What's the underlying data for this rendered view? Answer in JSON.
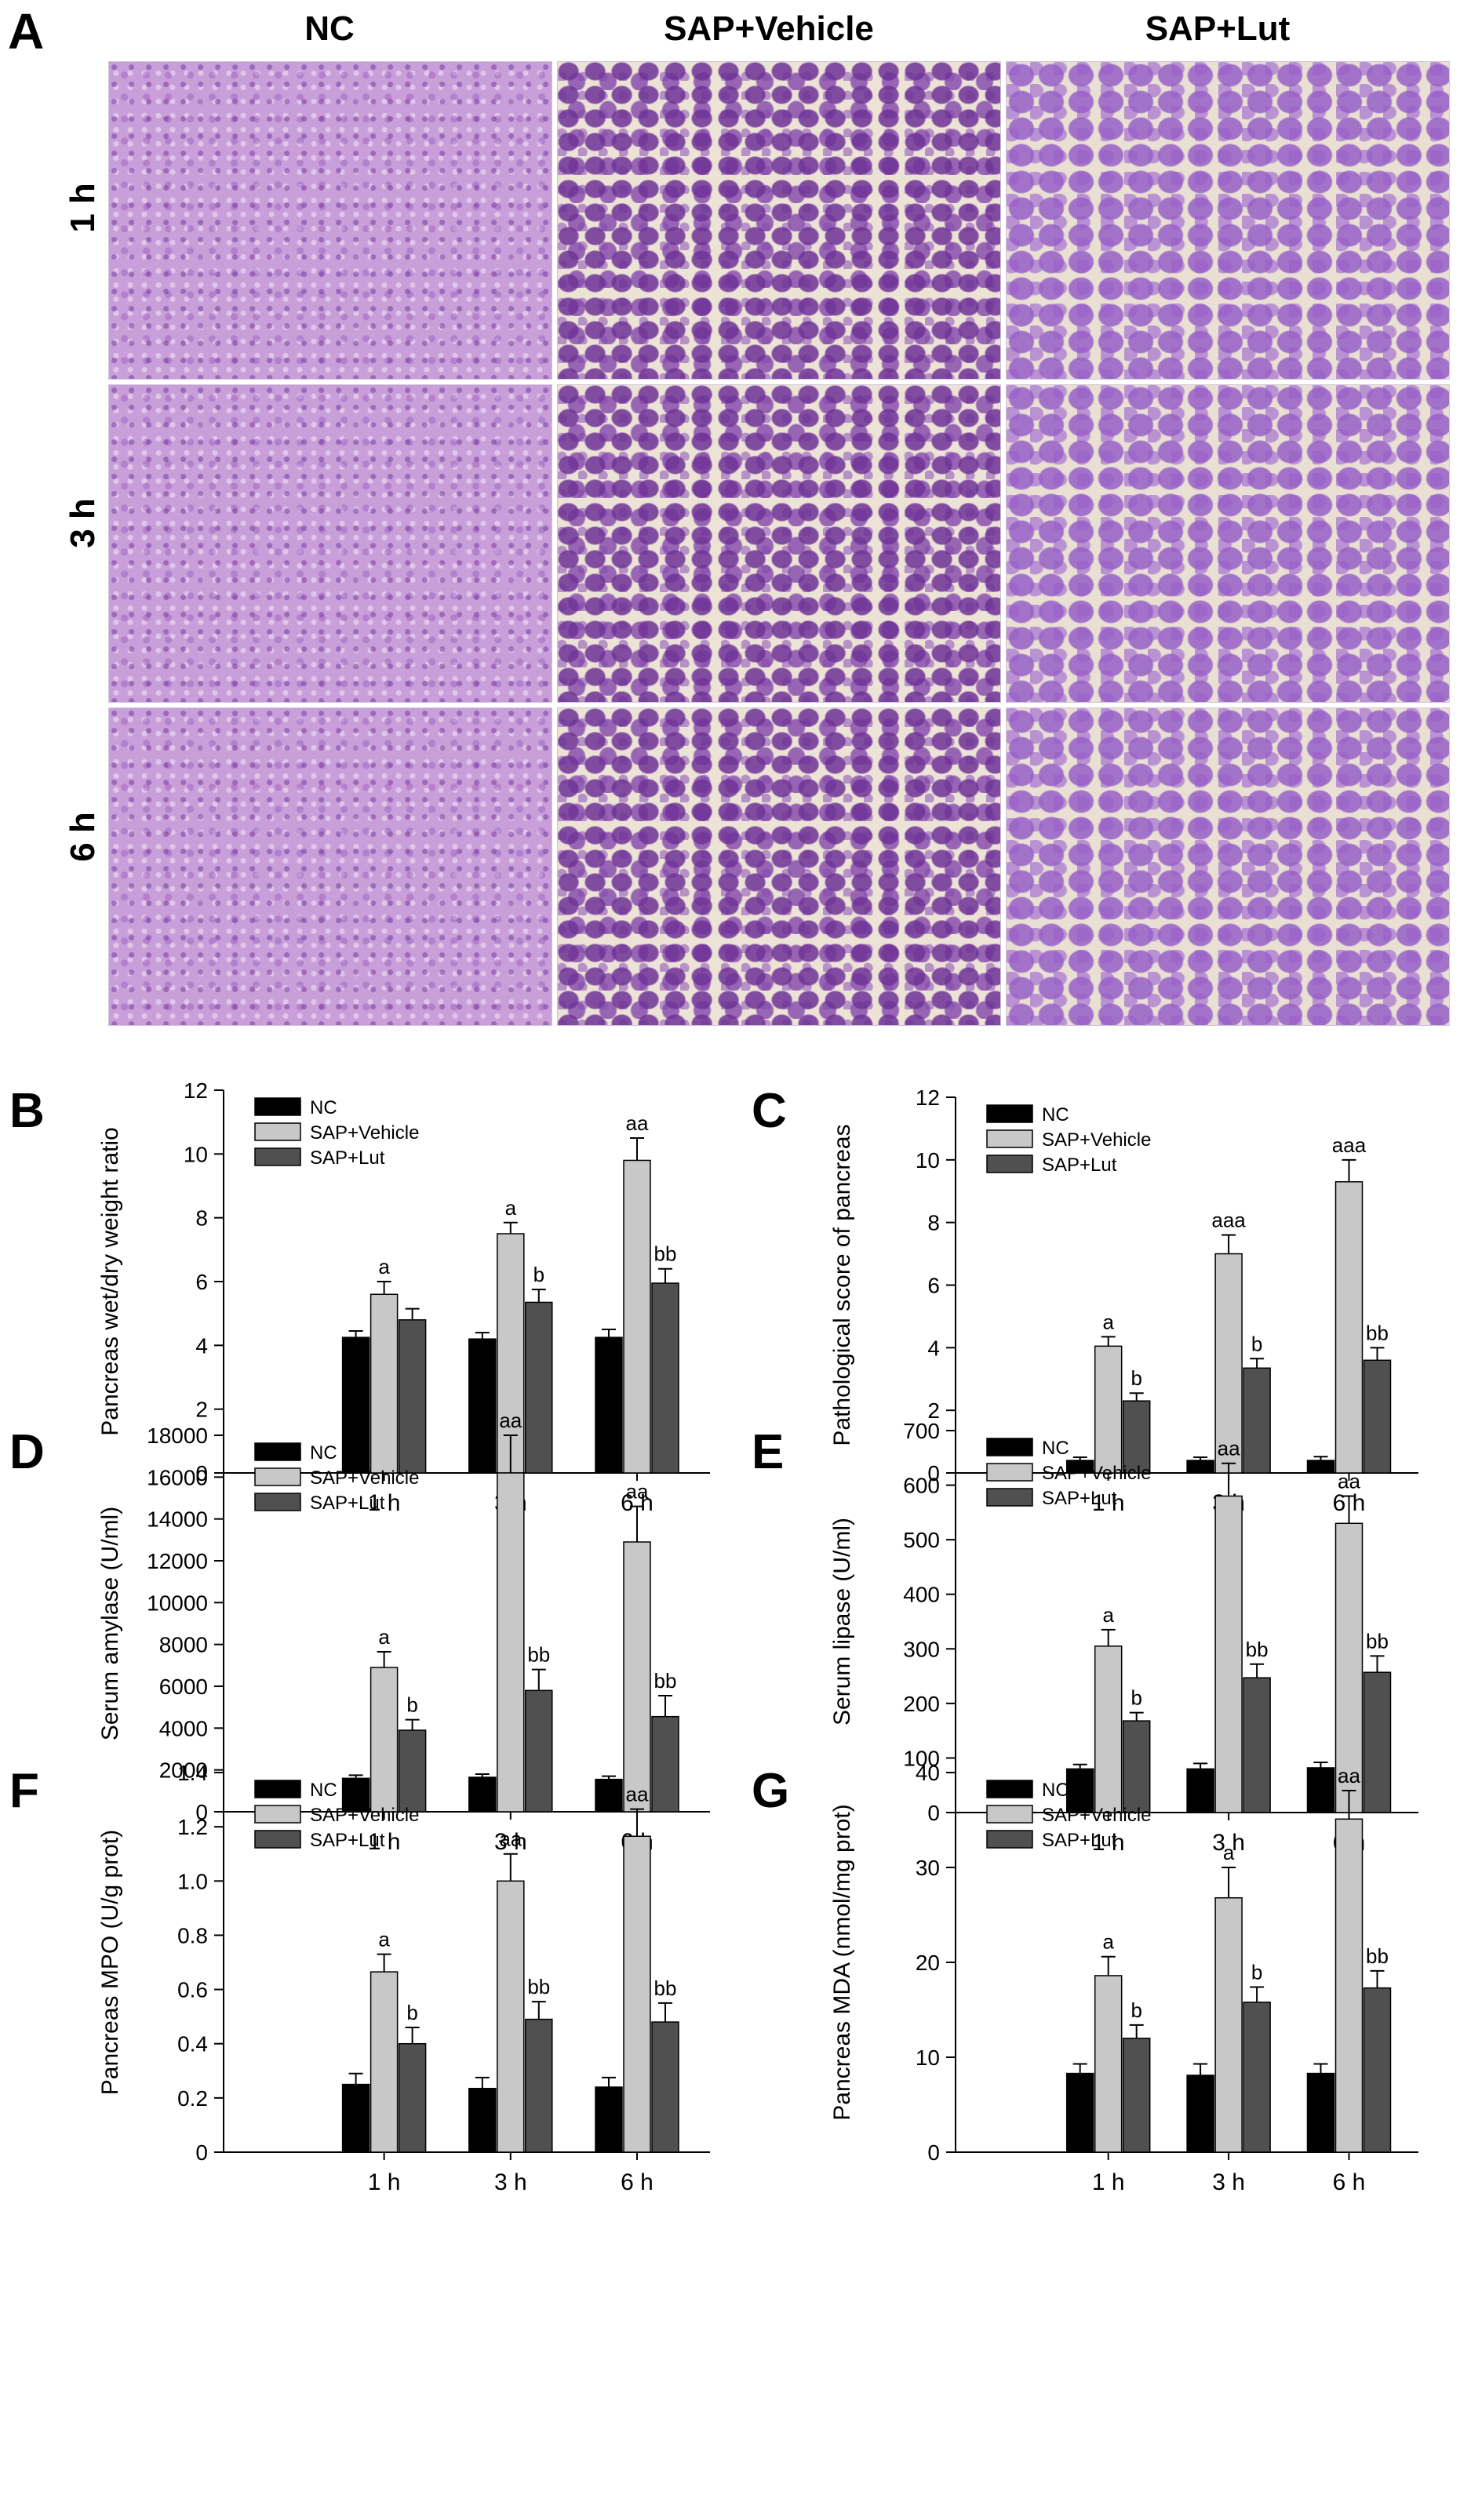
{
  "panel_a": {
    "letter": "A",
    "columns": [
      "NC",
      "SAP+Vehicle",
      "SAP+Lut"
    ],
    "rows": [
      "1 h",
      "3 h",
      "6 h"
    ]
  },
  "legend_labels": [
    "NC",
    "SAP+Vehicle",
    "SAP+Lut"
  ],
  "colors": {
    "NC": "#000000",
    "SAP+Vehicle": "#c8c8c8",
    "SAP+Lut": "#505050"
  },
  "chart_data": [
    {
      "letter": "B",
      "type": "bar",
      "ylabel": "Pancreas wet/dry weight ratio",
      "categories": [
        "1 h",
        "3 h",
        "6 h"
      ],
      "ylim": [
        0,
        12
      ],
      "yticks": [
        "0",
        "2",
        "4",
        "6",
        "8",
        "10",
        "12"
      ],
      "legend": "top-left",
      "series": [
        {
          "name": "NC",
          "values": [
            4.25,
            4.2,
            4.25
          ],
          "errors": [
            0.2,
            0.2,
            0.25
          ],
          "labels": [
            "",
            "",
            ""
          ]
        },
        {
          "name": "SAP+Vehicle",
          "values": [
            5.6,
            7.5,
            9.8
          ],
          "errors": [
            0.4,
            0.35,
            0.7
          ],
          "labels": [
            "a",
            "a",
            "aa"
          ]
        },
        {
          "name": "SAP+Lut",
          "values": [
            4.8,
            5.35,
            5.95
          ],
          "errors": [
            0.35,
            0.4,
            0.45
          ],
          "labels": [
            "",
            "b",
            "bb"
          ]
        }
      ]
    },
    {
      "letter": "C",
      "type": "bar",
      "ylabel": "Pathological score of pancreas",
      "categories": [
        "1 h",
        "3 h",
        "6 h"
      ],
      "ylim": [
        0,
        12
      ],
      "yticks": [
        "0",
        "2",
        "4",
        "6",
        "8",
        "10",
        "12"
      ],
      "legend": "top-left",
      "series": [
        {
          "name": "NC",
          "values": [
            0.4,
            0.4,
            0.4
          ],
          "errors": [
            0.1,
            0.1,
            0.12
          ],
          "labels": [
            "",
            "",
            ""
          ]
        },
        {
          "name": "SAP+Vehicle",
          "values": [
            4.05,
            7.0,
            9.3
          ],
          "errors": [
            0.3,
            0.6,
            0.7
          ],
          "labels": [
            "a",
            "aaa",
            "aaa"
          ]
        },
        {
          "name": "SAP+Lut",
          "values": [
            2.3,
            3.35,
            3.6
          ],
          "errors": [
            0.25,
            0.3,
            0.4
          ],
          "labels": [
            "b",
            "b",
            "bb"
          ]
        }
      ]
    },
    {
      "letter": "D",
      "type": "bar",
      "ylabel": "Serum  amylase (U/ml)",
      "categories": [
        "1 h",
        "3 h",
        "6 h"
      ],
      "ylim": [
        0,
        18000
      ],
      "yticks": [
        "0",
        "2000",
        "4000",
        "6000",
        "8000",
        "10000",
        "12000",
        "14000",
        "16000",
        "18000"
      ],
      "legend": "top-left",
      "series": [
        {
          "name": "NC",
          "values": [
            1600,
            1650,
            1550
          ],
          "errors": [
            150,
            150,
            150
          ],
          "labels": [
            "",
            "",
            ""
          ]
        },
        {
          "name": "SAP+Vehicle",
          "values": [
            6900,
            16200,
            12900
          ],
          "errors": [
            750,
            1800,
            1700
          ],
          "labels": [
            "a",
            "aa",
            "aa"
          ]
        },
        {
          "name": "SAP+Lut",
          "values": [
            3900,
            5800,
            4550
          ],
          "errors": [
            500,
            1000,
            1000
          ],
          "labels": [
            "b",
            "bb",
            "bb"
          ]
        }
      ]
    },
    {
      "letter": "E",
      "type": "bar",
      "ylabel": "Serum lipase  (U/ml)",
      "categories": [
        "1 h",
        "3 h",
        "6 h"
      ],
      "ylim": [
        0,
        700
      ],
      "yticks": [
        "0",
        "100",
        "200",
        "300",
        "400",
        "500",
        "600",
        "700"
      ],
      "legend": "top-left",
      "series": [
        {
          "name": "NC",
          "values": [
            80,
            80,
            82
          ],
          "errors": [
            8,
            10,
            10
          ],
          "labels": [
            "",
            "",
            ""
          ]
        },
        {
          "name": "SAP+Vehicle",
          "values": [
            305,
            580,
            530
          ],
          "errors": [
            30,
            60,
            50
          ],
          "labels": [
            "a",
            "aa",
            "aa"
          ]
        },
        {
          "name": "SAP+Lut",
          "values": [
            168,
            247,
            257
          ],
          "errors": [
            15,
            25,
            30
          ],
          "labels": [
            "b",
            "bb",
            "bb"
          ]
        }
      ]
    },
    {
      "letter": "F",
      "type": "bar",
      "ylabel": "Pancreas MPO (U/g prot)",
      "categories": [
        "1 h",
        "3 h",
        "6 h"
      ],
      "ylim": [
        0,
        1.4
      ],
      "yticks": [
        "0",
        "0.2",
        "0.4",
        "0.6",
        "0.8",
        "1.0",
        "1.2",
        "1.4"
      ],
      "legend": "top-left",
      "series": [
        {
          "name": "NC",
          "values": [
            0.25,
            0.235,
            0.24
          ],
          "errors": [
            0.04,
            0.04,
            0.035
          ],
          "labels": [
            "",
            "",
            ""
          ]
        },
        {
          "name": "SAP+Vehicle",
          "values": [
            0.665,
            1.0,
            1.165
          ],
          "errors": [
            0.065,
            0.1,
            0.1
          ],
          "labels": [
            "a",
            "aa",
            "aa"
          ]
        },
        {
          "name": "SAP+Lut",
          "values": [
            0.4,
            0.49,
            0.48
          ],
          "errors": [
            0.06,
            0.065,
            0.07
          ],
          "labels": [
            "b",
            "bb",
            "bb"
          ]
        }
      ]
    },
    {
      "letter": "G",
      "type": "bar",
      "ylabel": "Pancreas MDA (nmol/mg prot)",
      "categories": [
        "1 h",
        "3 h",
        "6 h"
      ],
      "ylim": [
        0,
        40
      ],
      "yticks": [
        "0",
        "10",
        "20",
        "30",
        "40"
      ],
      "legend": "top-left",
      "series": [
        {
          "name": "NC",
          "values": [
            8.3,
            8.1,
            8.3
          ],
          "errors": [
            1.0,
            1.2,
            1.0
          ],
          "labels": [
            "",
            "",
            ""
          ]
        },
        {
          "name": "SAP+Vehicle",
          "values": [
            18.6,
            26.8,
            35.1
          ],
          "errors": [
            2.0,
            3.2,
            3.0
          ],
          "labels": [
            "a",
            "a",
            "aa"
          ]
        },
        {
          "name": "SAP+Lut",
          "values": [
            12.0,
            15.8,
            17.3
          ],
          "errors": [
            1.4,
            1.6,
            1.8
          ],
          "labels": [
            "b",
            "b",
            "bb"
          ]
        }
      ]
    }
  ]
}
